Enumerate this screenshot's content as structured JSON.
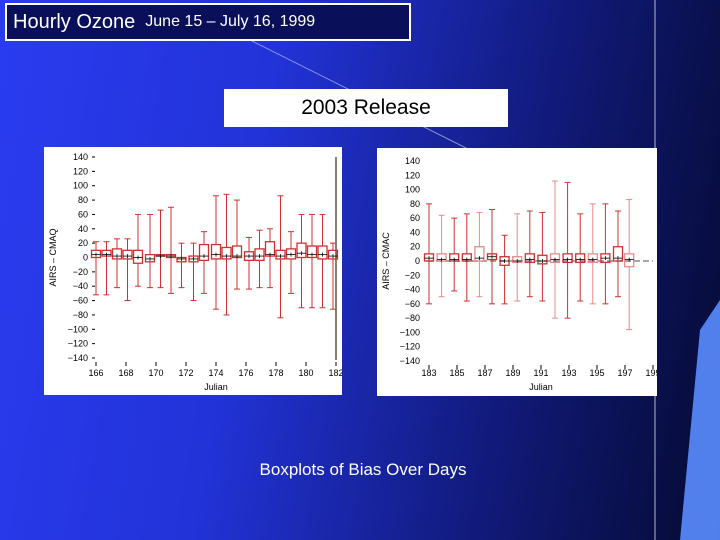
{
  "slide": {
    "title_main": "Hourly Ozone",
    "title_sub": "June 15 –  July 16, 1999",
    "release_label": "2003 Release",
    "caption": "Boxplots of Bias Over Days"
  },
  "colors": {
    "box": "#d03030",
    "box_light": "#e88a8a",
    "zero_line": "#888888",
    "median": "#000000"
  },
  "chart_data": [
    {
      "type": "boxplot",
      "ylabel": "AIRS – CMAQ",
      "xlabel": "Julian",
      "ylim": [
        -140,
        140
      ],
      "xlim": [
        166,
        182
      ],
      "yticks": [
        -140,
        -120,
        -100,
        -80,
        -60,
        -40,
        -20,
        0,
        20,
        40,
        60,
        80,
        100,
        120,
        140
      ],
      "ytick_labels": [
        "−140",
        "−120",
        "−100",
        "−80",
        "−60",
        "−40",
        "−20",
        "0",
        "20",
        "40",
        "60",
        "80",
        "100",
        "120",
        "140"
      ],
      "xticks": [
        166,
        168,
        170,
        172,
        174,
        176,
        178,
        180,
        182
      ],
      "xtick_labels": [
        "166",
        "168",
        "170",
        "172",
        "174",
        "176",
        "178",
        "180",
        "182"
      ],
      "boxes": [
        {
          "x": 166.0,
          "low": -52,
          "q1": 0,
          "median": 4,
          "q3": 10,
          "high": 22
        },
        {
          "x": 166.7,
          "low": -52,
          "q1": 2,
          "median": 4,
          "q3": 10,
          "high": 22
        },
        {
          "x": 167.4,
          "low": -42,
          "q1": -2,
          "median": 2,
          "q3": 12,
          "high": 26
        },
        {
          "x": 168.1,
          "low": -60,
          "q1": -2,
          "median": 2,
          "q3": 10,
          "high": 26
        },
        {
          "x": 168.8,
          "low": -40,
          "q1": -8,
          "median": 0,
          "q3": 10,
          "high": 60
        },
        {
          "x": 169.6,
          "low": -42,
          "q1": -6,
          "median": -2,
          "q3": 4,
          "high": 60
        },
        {
          "x": 170.3,
          "low": -42,
          "q1": 2,
          "median": 2,
          "q3": 4,
          "high": 66
        },
        {
          "x": 171.0,
          "low": -50,
          "q1": 0,
          "median": 2,
          "q3": 4,
          "high": 70
        },
        {
          "x": 171.7,
          "low": -42,
          "q1": -6,
          "median": -2,
          "q3": 0,
          "high": 20
        },
        {
          "x": 172.5,
          "low": -60,
          "q1": -6,
          "median": -2,
          "q3": 2,
          "high": 20
        },
        {
          "x": 173.2,
          "low": -50,
          "q1": -4,
          "median": 2,
          "q3": 18,
          "high": 36
        },
        {
          "x": 174.0,
          "low": -72,
          "q1": -2,
          "median": 4,
          "q3": 18,
          "high": 86
        },
        {
          "x": 174.7,
          "low": -80,
          "q1": -2,
          "median": 2,
          "q3": 14,
          "high": 88
        },
        {
          "x": 175.4,
          "low": -44,
          "q1": 0,
          "median": 2,
          "q3": 16,
          "high": 80
        },
        {
          "x": 176.2,
          "low": -44,
          "q1": -4,
          "median": 2,
          "q3": 8,
          "high": 28
        },
        {
          "x": 176.9,
          "low": -42,
          "q1": -4,
          "median": 2,
          "q3": 12,
          "high": 38
        },
        {
          "x": 177.6,
          "low": -42,
          "q1": 2,
          "median": 4,
          "q3": 22,
          "high": 40
        },
        {
          "x": 178.3,
          "low": -84,
          "q1": -2,
          "median": 2,
          "q3": 10,
          "high": 86
        },
        {
          "x": 179.0,
          "low": -50,
          "q1": -2,
          "median": 4,
          "q3": 12,
          "high": 36
        },
        {
          "x": 179.7,
          "low": -70,
          "q1": 0,
          "median": 6,
          "q3": 20,
          "high": 60
        },
        {
          "x": 180.4,
          "low": -70,
          "q1": 0,
          "median": 4,
          "q3": 16,
          "high": 60
        },
        {
          "x": 181.1,
          "low": -70,
          "q1": -2,
          "median": 4,
          "q3": 16,
          "high": 60
        },
        {
          "x": 181.8,
          "low": -72,
          "q1": -2,
          "median": 2,
          "q3": 10,
          "high": 20
        }
      ]
    },
    {
      "type": "boxplot",
      "ylabel": "AIRS – CMAC",
      "xlabel": "Julian",
      "ylim": [
        -140,
        140
      ],
      "xlim": [
        183,
        199
      ],
      "zero_line": true,
      "yticks": [
        -140,
        -120,
        -100,
        -80,
        -60,
        -40,
        -20,
        0,
        20,
        40,
        60,
        80,
        100,
        120,
        140
      ],
      "ytick_labels": [
        "−140",
        "−120",
        "−100",
        "−80",
        "−60",
        "−40",
        "−20",
        "0",
        "20",
        "40",
        "60",
        "80",
        "100",
        "120",
        "140"
      ],
      "xticks": [
        183,
        185,
        187,
        189,
        191,
        193,
        195,
        197,
        199
      ],
      "xtick_labels": [
        "183",
        "185",
        "187",
        "189",
        "191",
        "193",
        "195",
        "197",
        "199"
      ],
      "boxes": [
        {
          "x": 183.0,
          "low": -60,
          "q1": 0,
          "median": 4,
          "q3": 10,
          "high": 80
        },
        {
          "x": 183.9,
          "low": -50,
          "q1": 0,
          "median": 2,
          "q3": 10,
          "high": 64
        },
        {
          "x": 184.8,
          "low": -42,
          "q1": 0,
          "median": 2,
          "q3": 10,
          "high": 60
        },
        {
          "x": 185.7,
          "low": -56,
          "q1": 0,
          "median": 2,
          "q3": 10,
          "high": 66
        },
        {
          "x": 186.6,
          "low": -50,
          "q1": 0,
          "median": 4,
          "q3": 20,
          "high": 68
        },
        {
          "x": 187.5,
          "low": -60,
          "q1": 2,
          "median": 6,
          "q3": 10,
          "high": 72
        },
        {
          "x": 188.4,
          "low": -60,
          "q1": -6,
          "median": 0,
          "q3": 6,
          "high": 36
        },
        {
          "x": 189.3,
          "low": -56,
          "q1": -2,
          "median": 0,
          "q3": 6,
          "high": 66
        },
        {
          "x": 190.2,
          "low": -50,
          "q1": -2,
          "median": 2,
          "q3": 10,
          "high": 70
        },
        {
          "x": 191.1,
          "low": -56,
          "q1": -4,
          "median": 0,
          "q3": 8,
          "high": 68
        },
        {
          "x": 192.0,
          "low": -80,
          "q1": -2,
          "median": 2,
          "q3": 10,
          "high": 112
        },
        {
          "x": 192.9,
          "low": -80,
          "q1": -2,
          "median": 2,
          "q3": 10,
          "high": 110
        },
        {
          "x": 193.8,
          "low": -56,
          "q1": -2,
          "median": 2,
          "q3": 10,
          "high": 66
        },
        {
          "x": 194.7,
          "low": -60,
          "q1": -2,
          "median": 2,
          "q3": 10,
          "high": 80
        },
        {
          "x": 195.6,
          "low": -60,
          "q1": -2,
          "median": 4,
          "q3": 10,
          "high": 80
        },
        {
          "x": 196.5,
          "low": -50,
          "q1": 0,
          "median": 4,
          "q3": 20,
          "high": 70
        },
        {
          "x": 197.3,
          "low": -96,
          "q1": -8,
          "median": 2,
          "q3": 10,
          "high": 86
        }
      ]
    }
  ]
}
